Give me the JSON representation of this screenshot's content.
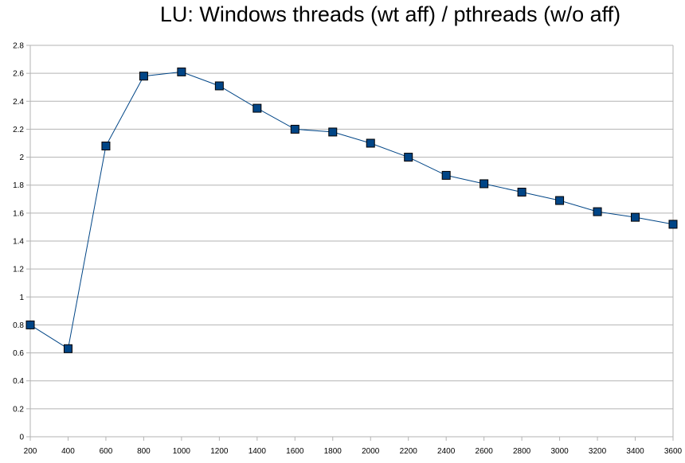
{
  "chart_data": {
    "type": "line",
    "title": "LU: Windows threads (wt aff) / pthreads (w/o aff)",
    "xlabel": "",
    "ylabel": "",
    "x": [
      200,
      400,
      600,
      800,
      1000,
      1200,
      1400,
      1600,
      1800,
      2000,
      2200,
      2400,
      2600,
      2800,
      3000,
      3200,
      3400,
      3600
    ],
    "x_tick_labels": [
      "200",
      "400",
      "600",
      "800",
      "1000",
      "1200",
      "1400",
      "1600",
      "1800",
      "2000",
      "2200",
      "2400",
      "2600",
      "2800",
      "3000",
      "3200",
      "3400",
      "3600"
    ],
    "y_tick_labels": [
      "0",
      "0.2",
      "0.4",
      "0.6",
      "0.8",
      "1",
      "1.2",
      "1.4",
      "1.6",
      "1.8",
      "2",
      "2.2",
      "2.4",
      "2.6",
      "2.8"
    ],
    "series": [
      {
        "values": [
          0.8,
          0.63,
          2.08,
          2.58,
          2.61,
          2.51,
          2.35,
          2.2,
          2.18,
          2.1,
          2.0,
          1.87,
          1.81,
          1.75,
          1.69,
          1.61,
          1.57,
          1.52
        ],
        "color": "#004586",
        "marker": "square"
      }
    ],
    "ylim": [
      0,
      2.8
    ],
    "xlim": [
      200,
      3600
    ],
    "grid": "horizontal",
    "legend": "none",
    "grid_color": "#b3b3b3"
  }
}
